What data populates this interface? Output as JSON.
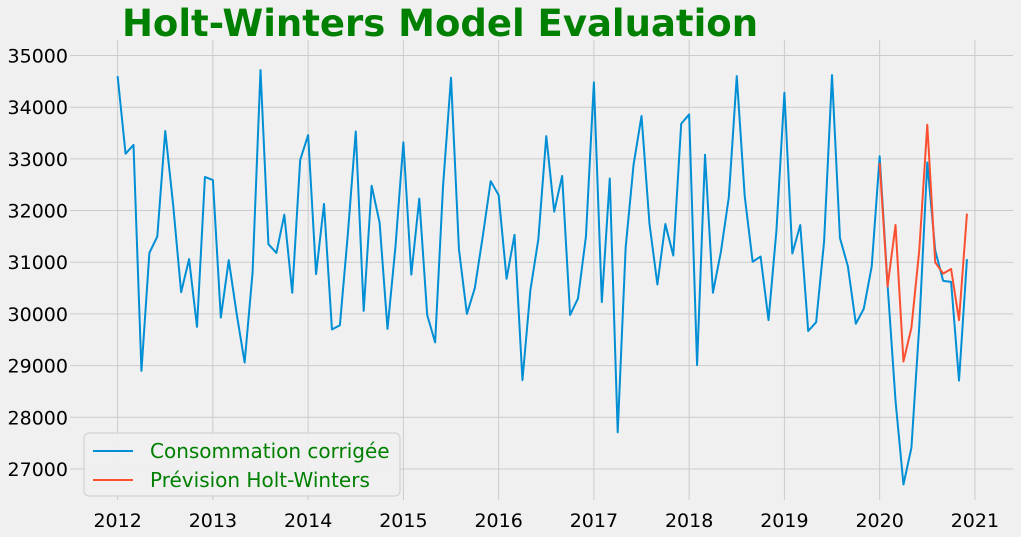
{
  "chart_data": {
    "type": "line",
    "title": "Holt-Winters Model Evaluation",
    "title_color": "#008000",
    "xlabel": "",
    "ylabel": "",
    "x_range": [
      2011.5,
      2021.4
    ],
    "x_ticks": [
      2012,
      2013,
      2014,
      2015,
      2016,
      2017,
      2018,
      2019,
      2020,
      2021
    ],
    "x_tick_labels": [
      "2012",
      "2013",
      "2014",
      "2015",
      "2016",
      "2017",
      "2018",
      "2019",
      "2020",
      "2021"
    ],
    "y_range": [
      26400,
      35300
    ],
    "y_ticks": [
      27000,
      28000,
      29000,
      30000,
      31000,
      32000,
      33000,
      34000,
      35000
    ],
    "y_tick_labels": [
      "27000",
      "28000",
      "29000",
      "30000",
      "31000",
      "32000",
      "33000",
      "34000",
      "35000"
    ],
    "grid": true,
    "legend_position": "lower-left",
    "legend_text_color": "#008000",
    "series": [
      {
        "name": "Consommation corrigée",
        "color": "#008fd5",
        "start": "2012-01",
        "values": [
          34600,
          33100,
          33270,
          28900,
          31180,
          31500,
          33540,
          32100,
          30420,
          31060,
          29750,
          32650,
          32590,
          29930,
          31040,
          30000,
          29060,
          30800,
          34720,
          31350,
          31180,
          31920,
          30410,
          32980,
          33460,
          30770,
          32130,
          29700,
          29780,
          31540,
          33530,
          30060,
          32480,
          31770,
          29710,
          31300,
          33320,
          30760,
          32230,
          29980,
          29450,
          32480,
          34570,
          31250,
          30000,
          30500,
          31500,
          32570,
          32300,
          30680,
          31530,
          28720,
          30460,
          31440,
          33440,
          31980,
          32670,
          29980,
          30300,
          31500,
          34480,
          30230,
          32620,
          27710,
          31280,
          32890,
          33830,
          31750,
          30570,
          31740,
          31130,
          33680,
          33860,
          29010,
          33080,
          30410,
          31200,
          32260,
          34600,
          32280,
          31010,
          31110,
          29880,
          31620,
          34280,
          31170,
          31720,
          29670,
          29840,
          31400,
          34620,
          31470,
          30920,
          29810,
          30100,
          30920,
          33050,
          30560,
          28320,
          26700,
          27410,
          29790,
          32930,
          31230,
          30640,
          30620,
          28710,
          31060
        ]
      },
      {
        "name": "Prévision Holt-Winters",
        "color": "#fc4f30",
        "start": "2020-01",
        "values": [
          32920,
          30530,
          31720,
          29080,
          29730,
          31250,
          33660,
          31000,
          30780,
          30870,
          29880,
          31940
        ]
      }
    ]
  }
}
